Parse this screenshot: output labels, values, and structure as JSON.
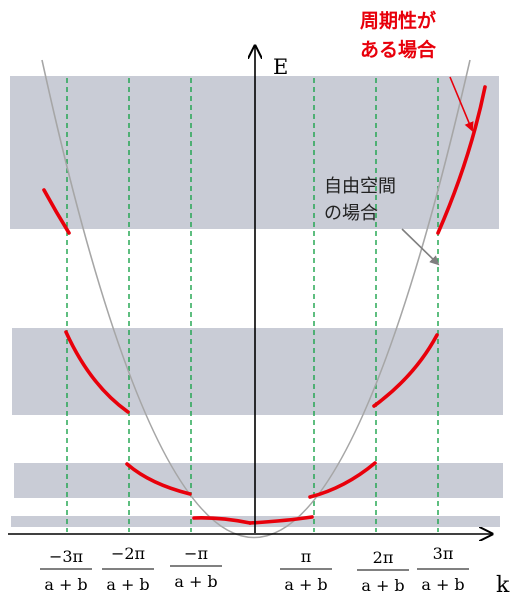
{
  "axes": {
    "y_label": "E",
    "x_label": "k"
  },
  "tick_labels": [
    {
      "id": "neg3",
      "num": "−3π",
      "den": "a + b"
    },
    {
      "id": "neg2",
      "num": "−2π",
      "den": "a + b"
    },
    {
      "id": "neg1",
      "num": "−π",
      "den": "a + b"
    },
    {
      "id": "pos1",
      "num": "π",
      "den": "a + b"
    },
    {
      "id": "pos2",
      "num": "2π",
      "den": "a + b"
    },
    {
      "id": "pos3",
      "num": "3π",
      "den": "a + b"
    }
  ],
  "annotations": {
    "periodic": {
      "line1": "周期性が",
      "line2": "ある場合"
    },
    "free": {
      "line1": "自由空間",
      "line2": "の場合"
    }
  },
  "colors": {
    "band": "#c9ccd6",
    "periodic_curve": "#e8000b",
    "free_curve": "#a6a6a6",
    "zone_boundary": "#1aa34a",
    "axis": "#000000",
    "periodic_label": "#e8000b",
    "free_label": "#222222",
    "pointer": "#7f7f7f"
  }
}
